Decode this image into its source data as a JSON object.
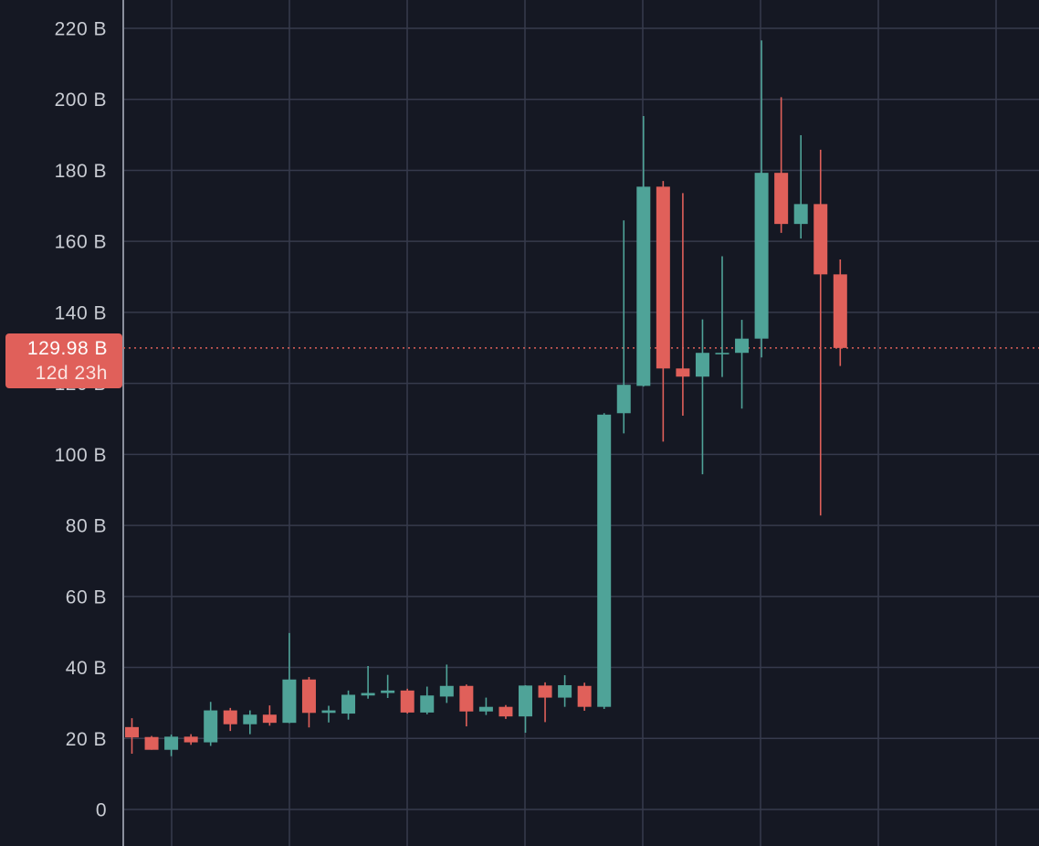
{
  "colors": {
    "background": "#151823",
    "grid": "#363a4c",
    "axis_line": "#8a8f9c",
    "up": "#4fa398",
    "down": "#e0605a",
    "last_price_line": "#e0605a"
  },
  "price_label": {
    "value": "129.98 B",
    "countdown": "12d 23h"
  },
  "chart_data": {
    "type": "candlestick",
    "title": "",
    "xlabel": "",
    "ylabel": "",
    "unit": "B",
    "ylim": [
      0,
      220
    ],
    "yticks": [
      0,
      20,
      40,
      60,
      80,
      100,
      120,
      140,
      160,
      180,
      200,
      220
    ],
    "ytick_labels": [
      "0",
      "20 B",
      "40 B",
      "60 B",
      "80 B",
      "100 B",
      "120 B",
      "140 B",
      "160 B",
      "180 B",
      "200 B",
      "220 B"
    ],
    "grid": true,
    "y_axis_position": "left",
    "last_price": 129.98,
    "candles": [
      {
        "open": 23.2,
        "high": 25.7,
        "low": 15.7,
        "close": 20.3
      },
      {
        "open": 20.4,
        "high": 20.7,
        "low": 16.8,
        "close": 16.8
      },
      {
        "open": 16.8,
        "high": 21.1,
        "low": 15.0,
        "close": 20.5
      },
      {
        "open": 20.5,
        "high": 21.2,
        "low": 18.2,
        "close": 18.9
      },
      {
        "open": 18.9,
        "high": 30.3,
        "low": 17.9,
        "close": 27.9
      },
      {
        "open": 27.9,
        "high": 28.6,
        "low": 22.1,
        "close": 24.0
      },
      {
        "open": 24.0,
        "high": 27.9,
        "low": 21.2,
        "close": 26.7
      },
      {
        "open": 26.7,
        "high": 29.3,
        "low": 23.6,
        "close": 24.4
      },
      {
        "open": 24.4,
        "high": 49.7,
        "low": 24.3,
        "close": 36.6
      },
      {
        "open": 36.6,
        "high": 37.3,
        "low": 23.1,
        "close": 27.2
      },
      {
        "open": 27.2,
        "high": 29.2,
        "low": 24.5,
        "close": 27.9
      },
      {
        "open": 27.0,
        "high": 33.5,
        "low": 25.3,
        "close": 32.3
      },
      {
        "open": 32.1,
        "high": 40.4,
        "low": 31.2,
        "close": 32.8
      },
      {
        "open": 32.8,
        "high": 37.9,
        "low": 31.4,
        "close": 33.5
      },
      {
        "open": 33.5,
        "high": 34.0,
        "low": 27.0,
        "close": 27.3
      },
      {
        "open": 27.3,
        "high": 34.6,
        "low": 26.8,
        "close": 32.1
      },
      {
        "open": 31.8,
        "high": 40.8,
        "low": 30.0,
        "close": 34.8
      },
      {
        "open": 34.8,
        "high": 35.2,
        "low": 23.4,
        "close": 27.6
      },
      {
        "open": 27.6,
        "high": 31.5,
        "low": 26.6,
        "close": 28.9
      },
      {
        "open": 28.9,
        "high": 29.4,
        "low": 25.5,
        "close": 26.2
      },
      {
        "open": 26.2,
        "high": 35.0,
        "low": 21.6,
        "close": 34.9
      },
      {
        "open": 34.9,
        "high": 35.8,
        "low": 24.6,
        "close": 31.5
      },
      {
        "open": 31.5,
        "high": 37.8,
        "low": 28.9,
        "close": 35.0
      },
      {
        "open": 34.8,
        "high": 35.7,
        "low": 27.8,
        "close": 28.9
      },
      {
        "open": 28.9,
        "high": 111.6,
        "low": 28.3,
        "close": 111.2
      },
      {
        "open": 111.6,
        "high": 165.9,
        "low": 105.9,
        "close": 119.6
      },
      {
        "open": 119.3,
        "high": 195.3,
        "low": 119.1,
        "close": 175.4
      },
      {
        "open": 175.4,
        "high": 177.0,
        "low": 103.6,
        "close": 124.2
      },
      {
        "open": 124.2,
        "high": 173.6,
        "low": 110.9,
        "close": 121.9
      },
      {
        "open": 121.9,
        "high": 138.0,
        "low": 94.4,
        "close": 128.6
      },
      {
        "open": 128.6,
        "high": 155.8,
        "low": 121.8,
        "close": 128.6
      },
      {
        "open": 128.6,
        "high": 137.9,
        "low": 112.9,
        "close": 132.6
      },
      {
        "open": 132.6,
        "high": 216.6,
        "low": 127.3,
        "close": 179.3
      },
      {
        "open": 179.3,
        "high": 200.6,
        "low": 162.4,
        "close": 164.9
      },
      {
        "open": 164.9,
        "high": 189.9,
        "low": 160.8,
        "close": 170.5
      },
      {
        "open": 170.5,
        "high": 185.8,
        "low": 82.8,
        "close": 150.7
      },
      {
        "open": 150.7,
        "high": 154.9,
        "low": 124.9,
        "close": 129.98
      }
    ]
  }
}
